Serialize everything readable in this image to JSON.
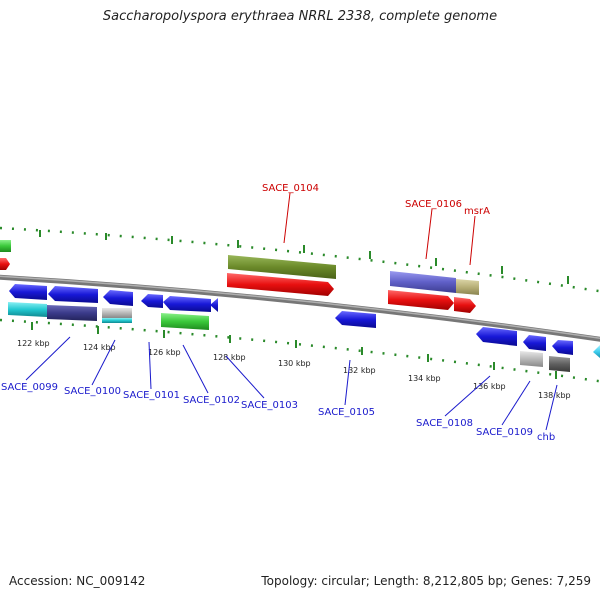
{
  "title": "Saccharopolyspora erythraea NRRL 2338, complete genome",
  "accession": "Accession: NC_009142",
  "topology": "Topology: circular; Length: 8,212,805 bp; Genes: 7,259",
  "ruler_labels": [
    "122 kbp",
    "124 kbp",
    "126 kbp",
    "128 kbp",
    "130 kbp",
    "132 kbp",
    "134 kbp",
    "136 kbp",
    "138 kbp"
  ],
  "gene_labels_top": [
    "SACE_0104",
    "SACE_0106",
    "msrA"
  ],
  "gene_labels_bottom": [
    "SACE_0099",
    "SACE_0100",
    "SACE_0101",
    "SACE_0102",
    "SACE_0103",
    "SACE_0105",
    "SACE_0108",
    "SACE_0109",
    "chb"
  ],
  "colors": {
    "backbone": "#888888",
    "tick": "#2a8a2a",
    "label_top": "#cc0000",
    "label_bottom": "#1a1acc",
    "red": "#e81010",
    "blue": "#1818d8",
    "olive": "#6b8a2a",
    "green": "#3ac83a",
    "cyan": "#22c8d0",
    "navy": "#3a3a8a",
    "purple": "#6060c8",
    "khaki": "#b8b078",
    "gray": "#b8b8b8",
    "darkgray": "#606060",
    "lightblue": "#40d0f0"
  }
}
